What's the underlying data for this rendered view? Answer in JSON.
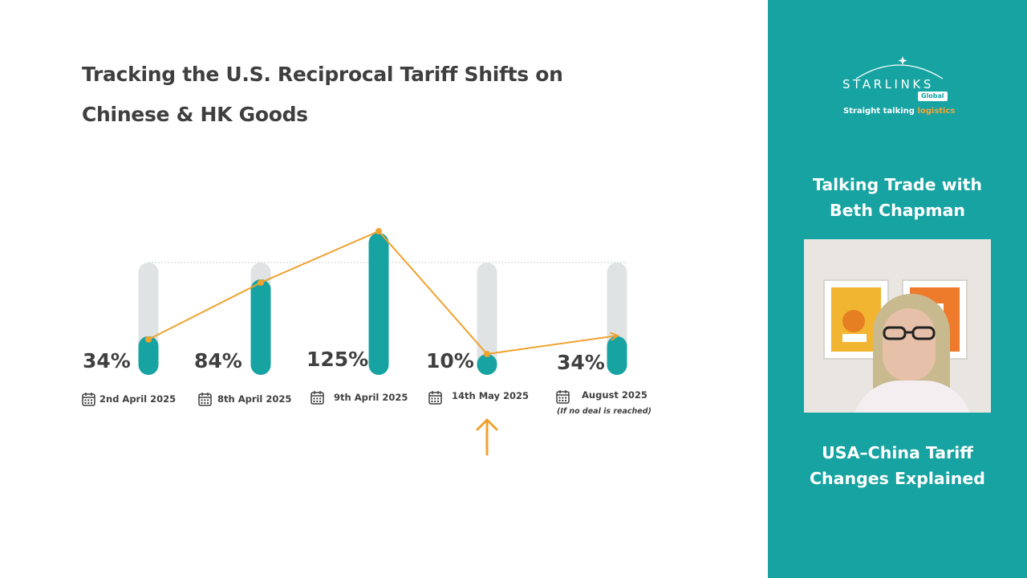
{
  "title": {
    "line1": "Tracking the U.S. Reciprocal Tariff Shifts on",
    "line2": "Chinese & HK Goods"
  },
  "chart_data": {
    "type": "bar",
    "title": "Tracking the U.S. Reciprocal Tariff Shifts on Chinese & HK Goods",
    "categories": [
      "2nd April 2025",
      "8th April 2025",
      "9th April 2025",
      "14th May 2025",
      "August 2025"
    ],
    "category_notes": [
      "",
      "",
      "",
      "",
      "(If no deal is reached)"
    ],
    "values": [
      34,
      84,
      125,
      10,
      34
    ],
    "value_labels": [
      "34%",
      "84%",
      "125%",
      "10%",
      "34%"
    ],
    "ylim": [
      0,
      125
    ],
    "overlay": "line connecting bar tops, ending in arrow",
    "highlight_category": "14th May 2025",
    "colors": {
      "bar": "#16a3a2",
      "track": "#dfe3e4",
      "line": "#f0a230",
      "text": "#3f3f3f",
      "side_panel": "#16a3a2",
      "accent": "#f4a638"
    },
    "icons": [
      "calendar-icon",
      "up-arrow-icon"
    ]
  },
  "side": {
    "logo": {
      "word": "STARLINKS",
      "sub": "Global",
      "tagline_main": "Straight talking",
      "tagline_accent": "logistics"
    },
    "heading1": [
      "Talking Trade with",
      "Beth Chapman"
    ],
    "heading2": [
      "USA–China Tariff",
      "Changes Explained"
    ]
  }
}
